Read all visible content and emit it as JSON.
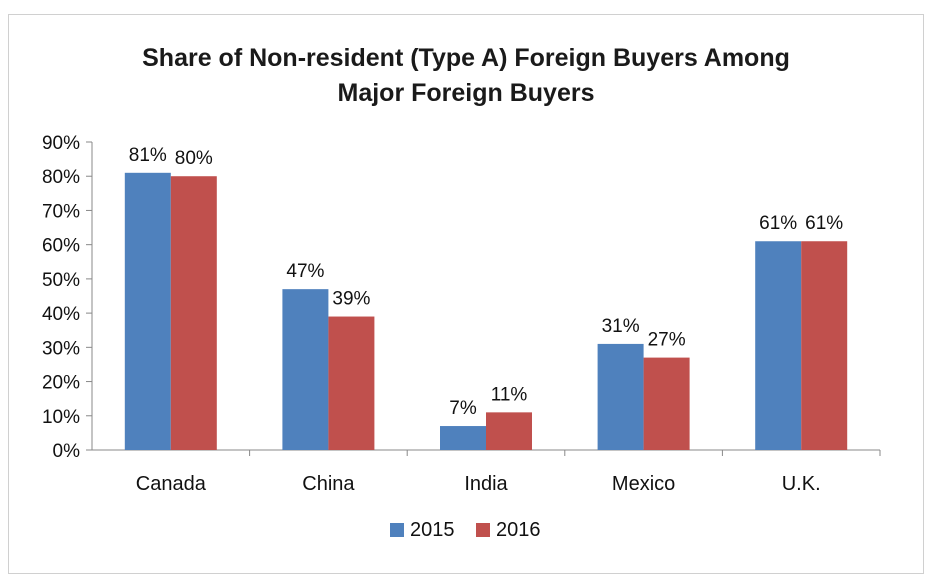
{
  "chart_data": {
    "type": "bar",
    "title": "Share of Non-resident (Type A) Foreign Buyers Among",
    "title_line2": "Major Foreign Buyers",
    "categories": [
      "Canada",
      "China",
      "India",
      "Mexico",
      "U.K."
    ],
    "series": [
      {
        "name": "2015",
        "color": "#4f81bd",
        "values": [
          81,
          47,
          7,
          31,
          61
        ]
      },
      {
        "name": "2016",
        "color": "#c0504d",
        "values": [
          80,
          39,
          11,
          27,
          61
        ]
      }
    ],
    "ylim": [
      0,
      90
    ],
    "yticks": [
      0,
      10,
      20,
      30,
      40,
      50,
      60,
      70,
      80,
      90
    ],
    "ytick_suffix": "%",
    "data_label_suffix": "%",
    "xlabel": "",
    "ylabel": "",
    "grid": false,
    "legend": "bottom-center"
  }
}
